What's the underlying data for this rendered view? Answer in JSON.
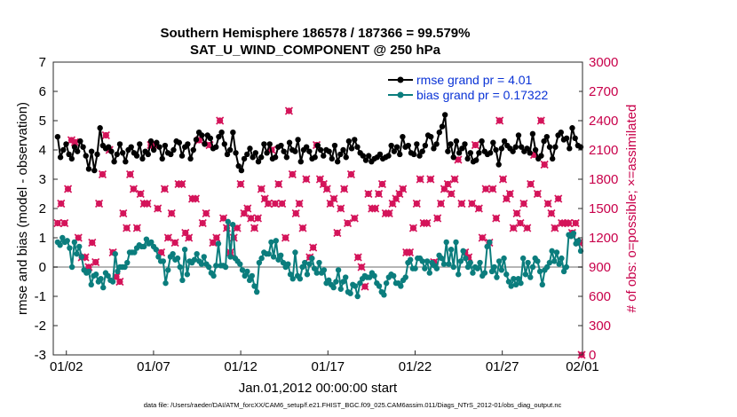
{
  "chart_data": {
    "type": "line",
    "title_lines": [
      "Southern Hemisphere 186578 / 187366 = 99.579%",
      "SAT_U_WIND_COMPONENT @ 250 hPa"
    ],
    "xlabel": "Jan.01,2012 00:00:00 start",
    "ylabel": "rmse and bias (model - observation)",
    "y2label": "# of obs: o=possible; ×=assimilated",
    "footnote": "data file: /Users/raeder/DAI/ATM_forcXX/CAM6_setup/f.e21.FHIST_BGC.f09_025.CAM6assim.011/Diags_NTrS_2012-01/obs_diag_output.nc",
    "xlim": [
      0.75,
      31.1
    ],
    "ylim": [
      -3,
      7
    ],
    "y2lim": [
      0,
      3000
    ],
    "x_ticks": [
      1.5,
      6.5,
      11.5,
      16.5,
      21.5,
      26.5,
      31.5
    ],
    "x_tick_labels": [
      "01/02",
      "01/07",
      "01/12",
      "01/17",
      "01/22",
      "01/27",
      "02/01"
    ],
    "y_ticks": [
      -3,
      -2,
      -1,
      0,
      1,
      2,
      3,
      4,
      5,
      6,
      7
    ],
    "y_tick_labels": [
      "-3",
      "-2",
      "-1",
      "0",
      "1",
      "2",
      "3",
      "4",
      "5",
      "6",
      "7"
    ],
    "y2_ticks": [
      0,
      300,
      600,
      900,
      1200,
      1500,
      1800,
      2100,
      2400,
      2700,
      3000
    ],
    "y2_tick_labels": [
      "0",
      "300",
      "600",
      "900",
      "1200",
      "1500",
      "1800",
      "2100",
      "2400",
      "2700",
      "3000"
    ],
    "legend": [
      "rmse grand pr = 4.01",
      "bias grand pr = 0.17322"
    ],
    "legend_position": "top-right",
    "colors": {
      "rmse": "#000000",
      "bias": "#0b7d7d",
      "obs": "#d4145a",
      "zero": "#b5b5b5"
    },
    "series": [
      {
        "name": "rmse",
        "values": [
          4.45,
          3.75,
          4.0,
          4.2,
          3.85,
          3.7,
          4.1,
          3.95,
          4.3,
          4.1,
          3.8,
          3.35,
          3.95,
          3.3,
          3.85,
          4.75,
          4.15,
          4.05,
          4.1,
          3.95,
          3.6,
          3.85,
          4.2,
          3.9,
          3.6,
          4.0,
          4.1,
          3.9,
          3.8,
          4.2,
          3.7,
          3.95,
          3.85,
          4.3,
          4.0,
          4.25,
          4.1,
          3.7,
          4.15,
          3.9,
          3.85,
          4.0,
          4.3,
          4.25,
          3.8,
          4.1,
          4.2,
          3.7,
          4.0,
          4.35,
          4.6,
          4.5,
          4.2,
          4.5,
          4.4,
          4.05,
          4.1,
          4.45,
          4.6,
          4.2,
          3.85,
          4.0,
          4.6,
          3.9,
          3.45,
          3.3,
          3.7,
          3.85,
          4.05,
          3.75,
          3.9,
          3.6,
          3.75,
          4.2,
          3.9,
          4.2,
          3.7,
          3.75,
          4.1,
          4.15,
          3.95,
          3.75,
          4.25,
          4.0,
          3.95,
          4.35,
          3.6,
          4.0,
          4.1,
          3.95,
          3.7,
          3.75,
          4.15,
          4.0,
          3.8,
          4.0,
          3.95,
          3.7,
          4.15,
          3.6,
          3.85,
          4.0,
          3.75,
          4.3,
          4.05,
          4.35,
          4.1,
          3.9,
          3.8,
          3.65,
          3.8,
          3.6,
          3.7,
          3.75,
          3.85,
          3.7,
          3.75,
          3.8,
          4.15,
          3.95,
          4.1,
          3.85,
          4.45,
          4.1,
          4.15,
          3.9,
          3.85,
          4.2,
          3.8,
          3.95,
          4.15,
          4.5,
          4.45,
          4.05,
          4.2,
          4.6,
          4.8,
          5.2,
          3.95,
          4.2,
          3.75,
          4.3,
          3.9,
          4.05,
          4.2,
          3.7,
          3.9,
          3.6,
          3.65,
          3.9,
          4.3,
          3.95,
          3.85,
          3.9,
          4.25,
          4.0,
          3.5,
          4.05,
          4.3,
          4.15,
          4.05,
          3.95,
          4.1,
          4.5,
          4.1,
          3.95,
          4.05,
          3.9,
          4.55,
          4.0,
          3.7,
          3.8,
          4.3,
          4.45,
          4.1,
          3.7,
          4.1,
          4.5,
          4.6,
          4.35,
          4.4,
          4.05,
          4.75,
          4.4,
          4.15,
          4.1
        ]
      },
      {
        "name": "bias",
        "values": [
          0.85,
          0.75,
          1.0,
          0.85,
          0.9,
          0.65,
          0.0,
          0.85,
          0.45,
          0.7,
          0.35,
          -0.1,
          -0.2,
          -0.15,
          -0.6,
          -0.3,
          -0.25,
          -0.5,
          -0.4,
          -0.7,
          -0.2,
          -0.3,
          -0.45,
          -0.5,
          0.45,
          -0.15,
          0.0,
          0.0,
          0.0,
          0.15,
          0.5,
          0.5,
          0.5,
          0.65,
          0.75,
          0.7,
          0.7,
          0.95,
          0.8,
          0.85,
          0.7,
          0.6,
          0.35,
          0.2,
          0.2,
          -0.55,
          -0.1,
          0.35,
          0.45,
          0.25,
          0.3,
          0.0,
          -0.45,
          0.6,
          -0.25,
          0.2,
          0.15,
          0.25,
          0.45,
          0.2,
          0.1,
          0.35,
          0.1,
          0.0,
          -0.2,
          -0.3,
          0.05,
          0.8,
          0.05,
          0.05,
          0.0,
          1.55,
          0.35,
          1.45,
          0.3,
          0.2,
          0.1,
          -0.1,
          -0.3,
          -0.15,
          -0.45,
          -0.3,
          -0.65,
          -0.85,
          0.15,
          0.3,
          0.5,
          0.45,
          0.45,
          0.85,
          0.35,
          0.9,
          0.25,
          0.4,
          0.15,
          0.0,
          0.1,
          -0.25,
          -0.4,
          0.5,
          -0.3,
          -0.4,
          0.0,
          0.15,
          -0.25,
          0.1,
          0.3,
          -0.05,
          -0.2,
          0.15,
          -0.2,
          -0.1,
          -0.55,
          -0.45,
          -0.6,
          -0.7,
          -0.5,
          -0.1,
          -0.75,
          -0.5,
          -0.35,
          -0.85,
          -0.9,
          -0.6,
          -0.65,
          -1.0,
          -0.55,
          -0.4,
          -0.3,
          -0.35,
          -0.35,
          -0.2,
          -0.3,
          -0.55,
          -0.65,
          -0.85,
          -0.95,
          -0.55,
          -0.35,
          -0.25,
          -0.3,
          -0.55,
          -0.55,
          -0.65,
          -0.45,
          -0.35,
          0.15,
          0.25,
          -0.05,
          -0.05,
          0.3,
          0.3,
          0.2,
          -0.05,
          0.2,
          -0.2,
          0.15,
          0.05,
          -0.05,
          0.4,
          0.3,
          0.1,
          0.85,
          0.1,
          0.6,
          0.0,
          0.85,
          -0.25,
          0.2,
          0.55,
          0.3,
          0.0,
          0.15,
          -0.2,
          0.0,
          -0.05,
          0.15,
          -0.3,
          -0.2,
          0.7,
          0.85,
          -0.15,
          0.0,
          -0.35,
          0.2,
          -0.1,
          0.3,
          -0.25,
          -0.5,
          -0.65,
          -0.4,
          -0.6,
          -0.4,
          -0.55,
          0.3,
          -0.25,
          0.15,
          -0.35,
          0.0,
          0.3,
          0.2,
          -0.15,
          -0.6,
          -0.1,
          0.0,
          0.15,
          0.55,
          0.2,
          0.5,
          0.1,
          0.3,
          -0.15,
          0.0,
          1.1,
          1.05,
          1.15,
          0.8,
          0.9,
          0.55
        ]
      },
      {
        "name": "obs_possible_and_assimilated",
        "values": [
          1350,
          1550,
          1350,
          1700,
          2200,
          2180,
          1200,
          1000,
          1000,
          900,
          1150,
          950,
          1550,
          1850,
          2250,
          2100,
          1050,
          800,
          750,
          1450,
          1300,
          1850,
          1700,
          1300,
          1650,
          1550,
          1550,
          2150,
          2150,
          1500,
          1050,
          1700,
          1200,
          1450,
          1150,
          1750,
          1750,
          1250,
          1200,
          1600,
          1600,
          2200,
          1350,
          1450,
          2150,
          1150,
          1200,
          2400,
          1400,
          1300,
          1050,
          1200,
          1300,
          1750,
          1450,
          1500,
          1400,
          1300,
          1400,
          1700,
          1600,
          1550,
          2100,
          1550,
          1750,
          1550,
          1200,
          2500,
          1850,
          1450,
          1550,
          1300,
          1800,
          1000,
          1100,
          2150,
          1800,
          1750,
          1700,
          1550,
          1600,
          1250,
          1500,
          1700,
          1350,
          1850,
          1400,
          1000,
          900,
          700,
          1650,
          1500,
          1500,
          1650,
          1750,
          1450,
          1450,
          1550,
          1600,
          1650,
          1700,
          1050,
          1050,
          1300,
          1550,
          1800,
          1350,
          1350,
          1800,
          950,
          1400,
          1550,
          1700,
          1750,
          1650,
          1800,
          2000,
          1550,
          1050,
          1000,
          1550,
          2150,
          1500,
          1200,
          1700,
          1150,
          1700,
          1400,
          2400,
          1800,
          1600,
          1650,
          1300,
          1450,
          1350,
          1550,
          1300,
          1750,
          2050,
          1650,
          2400,
          1950,
          1550,
          1450,
          1300,
          1600,
          1350,
          1350,
          1350,
          1250,
          1350,
          1150
        ]
      }
    ]
  }
}
